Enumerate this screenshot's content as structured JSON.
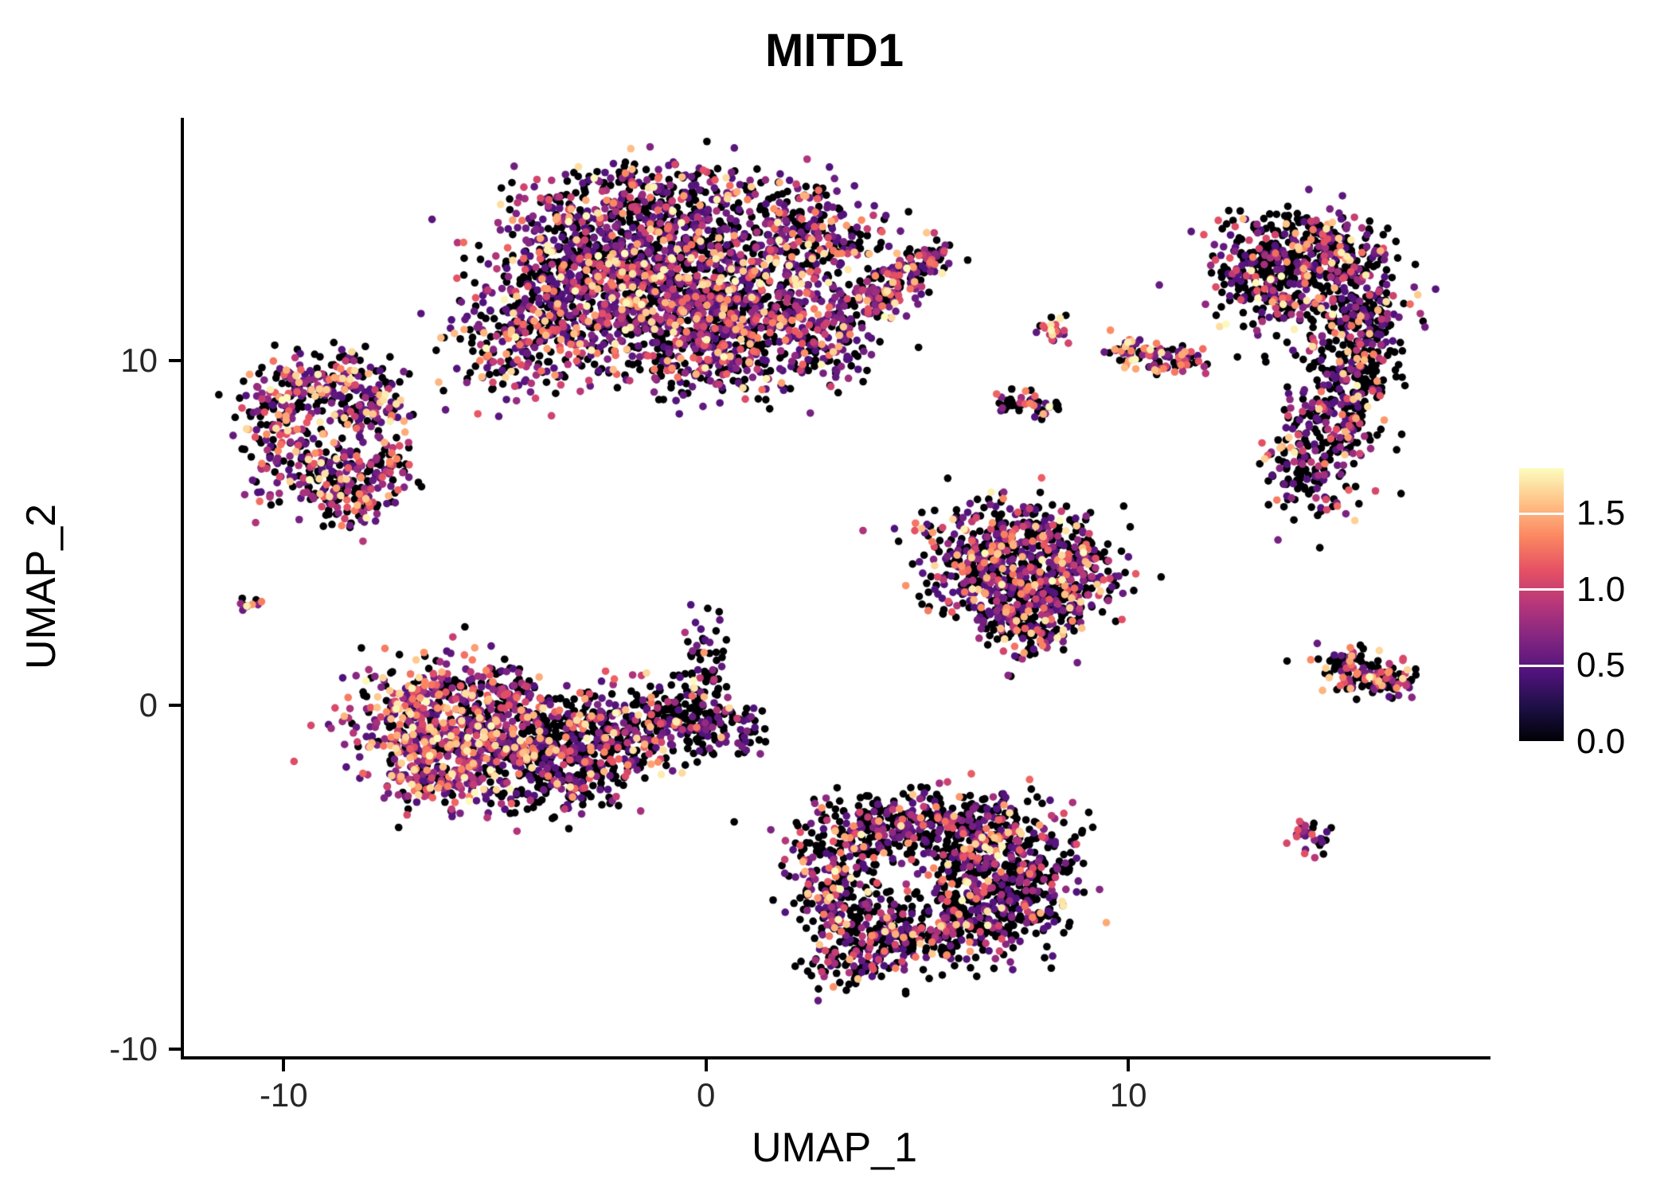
{
  "chart_data": {
    "type": "scatter",
    "title": "MITD1",
    "xlabel": "UMAP_1",
    "ylabel": "UMAP_2",
    "x_ticks": [
      -10,
      0,
      10
    ],
    "y_ticks": [
      10,
      0,
      -10
    ],
    "xlim": [
      -12.4,
      18.5
    ],
    "ylim": [
      -10.2,
      17.05
    ],
    "grid": false,
    "legend": {
      "position": "right",
      "ticks": [
        1.5,
        1.0,
        0.5,
        0.0
      ],
      "vmin": 0.0,
      "vmax": 1.8
    },
    "colormap": {
      "name": "magma",
      "stops": [
        [
          0,
          "#000004"
        ],
        [
          0.125,
          "#1c1044"
        ],
        [
          0.25,
          "#4f127b"
        ],
        [
          0.375,
          "#812581"
        ],
        [
          0.5,
          "#b5367a"
        ],
        [
          0.625,
          "#e55064"
        ],
        [
          0.75,
          "#fb8761"
        ],
        [
          0.875,
          "#fec287"
        ],
        [
          1,
          "#fcfdbf"
        ]
      ]
    },
    "point_radius_px": 4.8,
    "seed": 42,
    "clusters": [
      {
        "name": "top-center-main",
        "expr": {
          "p_zero": 0.42,
          "exp": 2.4
        },
        "blobs": [
          [
            -2.5,
            13.5,
            1.5,
            1.0,
            420
          ],
          [
            -0.5,
            13.0,
            1.5,
            1.2,
            500
          ],
          [
            1.5,
            12.0,
            1.2,
            1.1,
            380
          ],
          [
            -1.5,
            11.0,
            1.3,
            1.0,
            380
          ],
          [
            0.5,
            10.5,
            1.2,
            0.9,
            300
          ],
          [
            -3.5,
            11.8,
            1.0,
            1.0,
            250
          ],
          [
            -4.6,
            10.4,
            0.8,
            0.8,
            150
          ],
          [
            2.6,
            13.8,
            0.8,
            0.7,
            150
          ],
          [
            -0.5,
            14.9,
            1.2,
            0.5,
            120
          ],
          [
            2.8,
            10.6,
            0.6,
            0.6,
            100
          ]
        ]
      },
      {
        "name": "top-center-arm",
        "expr": {
          "p_zero": 0.38,
          "exp": 1.9
        },
        "blobs": [
          [
            4.0,
            11.8,
            0.4,
            0.3,
            60
          ],
          [
            4.7,
            12.4,
            0.4,
            0.3,
            60
          ],
          [
            5.3,
            13.0,
            0.35,
            0.25,
            50
          ]
        ]
      },
      {
        "name": "upper-left",
        "expr": {
          "p_zero": 0.42,
          "exp": 2.0
        },
        "blobs": [
          [
            -9.8,
            9.0,
            0.6,
            0.6,
            110
          ],
          [
            -8.6,
            9.4,
            0.6,
            0.5,
            100
          ],
          [
            -7.9,
            8.4,
            0.5,
            0.6,
            90
          ],
          [
            -10.1,
            7.6,
            0.5,
            0.7,
            100
          ],
          [
            -9.0,
            6.6,
            0.7,
            0.5,
            110
          ],
          [
            -7.8,
            6.9,
            0.5,
            0.5,
            70
          ],
          [
            -8.3,
            5.9,
            0.5,
            0.4,
            60
          ]
        ]
      },
      {
        "name": "tiny-left-dot",
        "expr": {
          "p_zero": 0.3,
          "exp": 2.0
        },
        "blobs": [
          [
            -10.9,
            3.0,
            0.15,
            0.12,
            10
          ]
        ]
      },
      {
        "name": "center-left-west",
        "expr": {
          "p_zero": 0.3,
          "exp": 1.7
        },
        "blobs": [
          [
            -6.8,
            -0.3,
            0.9,
            0.9,
            260
          ],
          [
            -5.6,
            -1.1,
            1.0,
            0.9,
            300
          ],
          [
            -6.3,
            -2.0,
            0.7,
            0.5,
            120
          ],
          [
            -5.0,
            0.3,
            0.6,
            0.5,
            90
          ]
        ]
      },
      {
        "name": "center-left-east",
        "expr": {
          "p_zero": 0.62,
          "exp": 2.4
        },
        "blobs": [
          [
            -4.2,
            -1.3,
            1.0,
            0.8,
            280
          ],
          [
            -2.9,
            -1.0,
            0.9,
            0.7,
            220
          ],
          [
            -1.6,
            -0.7,
            0.8,
            0.6,
            160
          ],
          [
            -0.5,
            -0.4,
            0.7,
            0.5,
            110
          ],
          [
            -0.1,
            1.0,
            0.35,
            0.8,
            70
          ],
          [
            0.6,
            -0.7,
            0.5,
            0.4,
            60
          ],
          [
            -3.0,
            -2.3,
            0.6,
            0.4,
            80
          ]
        ]
      },
      {
        "name": "mid-right-triangle",
        "expr": {
          "p_zero": 0.5,
          "exp": 2.2
        },
        "blobs": [
          [
            7.0,
            4.8,
            1.0,
            0.6,
            220
          ],
          [
            8.3,
            4.4,
            0.8,
            0.6,
            180
          ],
          [
            6.4,
            3.8,
            0.7,
            0.6,
            150
          ],
          [
            7.6,
            3.3,
            0.8,
            0.6,
            160
          ],
          [
            8.6,
            3.2,
            0.5,
            0.5,
            80
          ],
          [
            7.2,
            2.4,
            0.5,
            0.5,
            90
          ],
          [
            8.0,
            2.0,
            0.4,
            0.4,
            50
          ]
        ]
      },
      {
        "name": "bottom-center",
        "expr": {
          "p_zero": 0.58,
          "exp": 2.2
        },
        "blobs": [
          [
            4.0,
            -3.6,
            0.9,
            0.5,
            180
          ],
          [
            5.6,
            -3.4,
            1.0,
            0.5,
            200
          ],
          [
            7.0,
            -4.2,
            0.9,
            0.7,
            220
          ],
          [
            7.6,
            -5.5,
            0.7,
            0.7,
            180
          ],
          [
            6.3,
            -6.3,
            0.9,
            0.6,
            200
          ],
          [
            4.8,
            -6.7,
            0.8,
            0.5,
            160
          ],
          [
            3.4,
            -6.2,
            0.6,
            0.6,
            130
          ],
          [
            2.9,
            -4.8,
            0.5,
            0.7,
            120
          ],
          [
            3.3,
            -7.5,
            0.5,
            0.4,
            70
          ],
          [
            6.2,
            -5.0,
            0.5,
            0.5,
            60
          ]
        ]
      },
      {
        "name": "right-tall",
        "expr": {
          "p_zero": 0.6,
          "exp": 2.3
        },
        "blobs": [
          [
            13.4,
            13.0,
            0.7,
            0.7,
            140
          ],
          [
            14.5,
            13.3,
            0.8,
            0.6,
            150
          ],
          [
            15.3,
            12.3,
            0.6,
            0.8,
            140
          ],
          [
            15.6,
            11.0,
            0.5,
            0.8,
            130
          ],
          [
            15.3,
            9.6,
            0.6,
            0.8,
            150
          ],
          [
            14.8,
            8.2,
            0.6,
            0.8,
            150
          ],
          [
            14.3,
            6.9,
            0.6,
            0.7,
            120
          ],
          [
            13.6,
            11.9,
            0.6,
            0.8,
            130
          ],
          [
            12.9,
            12.7,
            0.4,
            0.5,
            60
          ]
        ]
      },
      {
        "name": "small-top-dot",
        "expr": {
          "p_zero": 0.3,
          "exp": 1.6
        },
        "blobs": [
          [
            8.3,
            10.9,
            0.22,
            0.18,
            22
          ]
        ]
      },
      {
        "name": "small-top-streak",
        "expr": {
          "p_zero": 0.35,
          "exp": 1.8
        },
        "blobs": [
          [
            10.15,
            10.35,
            0.3,
            0.22,
            45
          ],
          [
            10.9,
            10.05,
            0.35,
            0.18,
            40
          ],
          [
            11.5,
            9.9,
            0.2,
            0.12,
            15
          ]
        ]
      },
      {
        "name": "small-mid-streak",
        "expr": {
          "p_zero": 0.5,
          "exp": 1.8
        },
        "blobs": [
          [
            7.4,
            8.8,
            0.28,
            0.18,
            28
          ],
          [
            8.0,
            8.6,
            0.25,
            0.15,
            18
          ]
        ]
      },
      {
        "name": "small-right",
        "expr": {
          "p_zero": 0.45,
          "exp": 1.6
        },
        "blobs": [
          [
            15.1,
            1.2,
            0.4,
            0.3,
            55
          ],
          [
            15.8,
            0.8,
            0.5,
            0.35,
            70
          ],
          [
            16.3,
            0.6,
            0.25,
            0.2,
            25
          ]
        ]
      },
      {
        "name": "tiny-bottom-right",
        "expr": {
          "p_zero": 0.4,
          "exp": 1.7
        },
        "blobs": [
          [
            14.3,
            -3.8,
            0.28,
            0.25,
            30
          ]
        ]
      }
    ]
  }
}
